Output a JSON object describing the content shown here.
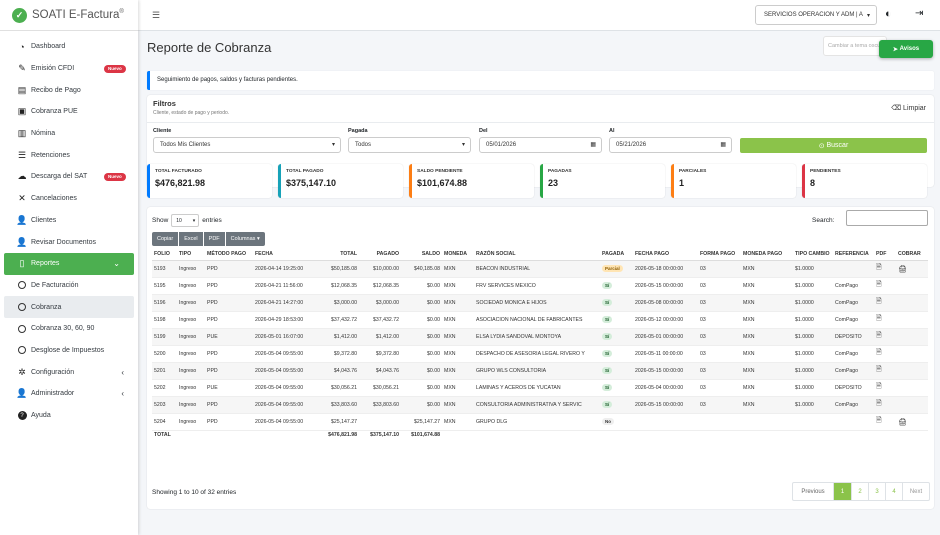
{
  "brand": {
    "name": "SOATI E-Factura",
    "mark": "®"
  },
  "sidebar": {
    "items": [
      {
        "label": "Dashboard",
        "icon": "dashboard-icon"
      },
      {
        "label": "Emisión CFDI",
        "icon": "file-signature-icon",
        "badge": "Nuevo"
      },
      {
        "label": "Recibo de Pago",
        "icon": "receipt-icon"
      },
      {
        "label": "Cobranza PUE",
        "icon": "cash-icon"
      },
      {
        "label": "Nómina",
        "icon": "id-card-icon"
      },
      {
        "label": "Retenciones",
        "icon": "list-icon"
      },
      {
        "label": "Descarga del SAT",
        "icon": "cloud-download-icon",
        "badge": "Nuevo"
      },
      {
        "label": "Cancelaciones",
        "icon": "close-icon"
      },
      {
        "label": "Clientes",
        "icon": "users-icon"
      },
      {
        "label": "Revisar Documentos",
        "icon": "user-search-icon"
      },
      {
        "label": "Reportes",
        "icon": "file-icon"
      },
      {
        "label": "De Facturación",
        "icon": "circle-icon"
      },
      {
        "label": "Cobranza",
        "icon": "circle-icon"
      },
      {
        "label": "Cobranza 30, 60, 90",
        "icon": "circle-icon"
      },
      {
        "label": "Desglose de Impuestos",
        "icon": "circle-icon"
      },
      {
        "label": "Configuración",
        "icon": "gears-icon"
      },
      {
        "label": "Administrador",
        "icon": "user-tie-icon"
      },
      {
        "label": "Ayuda",
        "icon": "help-icon"
      }
    ]
  },
  "topbar": {
    "company": "SERVICIOS OPERACION Y ADM | A"
  },
  "page": {
    "title": "Reporte de Cobranza",
    "search_placeholder": "Cambiar a tema oscuro",
    "avisos": "Avisos",
    "info": "Seguimiento de pagos, saldos y facturas pendientes."
  },
  "filters": {
    "title": "Filtros",
    "subtitle": "Cliente, estado de pago y periodo.",
    "clear": "Limpiar",
    "cliente_label": "Cliente",
    "cliente_value": "Todos Mis Clientes",
    "pagada_label": "Pagada",
    "pagada_value": "Todos",
    "del_label": "Del",
    "del_value": "05/01/2026",
    "al_label": "Al",
    "al_value": "05/21/2026",
    "buscar": "Buscar"
  },
  "kpis": [
    {
      "label": "TOTAL FACTURADO",
      "value": "$476,821.98",
      "color": "#007bff"
    },
    {
      "label": "TOTAL PAGADO",
      "value": "$375,147.10",
      "color": "#17a2b8"
    },
    {
      "label": "SALDO PENDIENTE",
      "value": "$101,674.88",
      "color": "#fd7e14"
    },
    {
      "label": "PAGADAS",
      "value": "23",
      "color": "#28a745"
    },
    {
      "label": "PARCIALES",
      "value": "1",
      "color": "#fd7e14"
    },
    {
      "label": "PENDIENTES",
      "value": "8",
      "color": "#dc3545"
    }
  ],
  "table": {
    "show": "Show",
    "entries": "entries",
    "length": "10",
    "search": "Search:",
    "buttons": [
      "Copiar",
      "Excel",
      "PDF",
      "Columnas"
    ],
    "headers": [
      "FOLIO",
      "TIPO",
      "MÉTODO PAGO",
      "FECHA",
      "TOTAL",
      "PAGADO",
      "SALDO",
      "MONEDA",
      "RAZÓN SOCIAL",
      "PAGADA",
      "FECHA PAGO",
      "FORMA PAGO",
      "MONEDA PAGO",
      "TIPO CAMBIO",
      "REFERENCIA",
      "PDF",
      "COBRAR"
    ],
    "rows": [
      [
        "5193",
        "Ingreso",
        "PPD",
        "2026-04-14 19:25:00",
        "$50,185.08",
        "$10,000.00",
        "$40,185.08",
        "MXN",
        "BEACON INDUSTRIAL",
        "Parcial",
        "2026-05-18 00:00:00",
        "03",
        "MXN",
        "$1.0000",
        "",
        "pdf",
        "cobrar"
      ],
      [
        "5195",
        "Ingreso",
        "PPD",
        "2026-04-21 11:56:00",
        "$12,068.35",
        "$12,068.35",
        "$0.00",
        "MXN",
        "FRV SERVICES MEXICO",
        "Sí",
        "2026-05-15 00:00:00",
        "03",
        "MXN",
        "$1.0000",
        "ComPago",
        "pdf",
        ""
      ],
      [
        "5196",
        "Ingreso",
        "PPD",
        "2026-04-21 14:27:00",
        "$3,000.00",
        "$3,000.00",
        "$0.00",
        "MXN",
        "SOCIEDAD MONICA E HIJOS",
        "Sí",
        "2026-05-08 00:00:00",
        "03",
        "MXN",
        "$1.0000",
        "ComPago",
        "pdf",
        ""
      ],
      [
        "5198",
        "Ingreso",
        "PPD",
        "2026-04-29 18:53:00",
        "$37,432.72",
        "$37,432.72",
        "$0.00",
        "MXN",
        "ASOCIACION NACIONAL DE FABRICANTES",
        "Sí",
        "2026-05-12 00:00:00",
        "03",
        "MXN",
        "$1.0000",
        "ComPago",
        "pdf",
        ""
      ],
      [
        "5199",
        "Ingreso",
        "PUE",
        "2026-05-01 16:07:00",
        "$1,412.00",
        "$1,412.00",
        "$0.00",
        "MXN",
        "ELSA LYDIA SANDOVAL MONTOYA",
        "Sí",
        "2026-05-01 00:00:00",
        "03",
        "MXN",
        "$1.0000",
        "DEPOSITO",
        "pdf",
        ""
      ],
      [
        "5200",
        "Ingreso",
        "PPD",
        "2026-05-04 09:55:00",
        "$9,372.80",
        "$9,372.80",
        "$0.00",
        "MXN",
        "DESPACHO DE ASESORIA LEGAL RIVERO Y",
        "Sí",
        "2026-05-11 00:00:00",
        "03",
        "MXN",
        "$1.0000",
        "ComPago",
        "pdf",
        ""
      ],
      [
        "5201",
        "Ingreso",
        "PPD",
        "2026-05-04 09:55:00",
        "$4,043.76",
        "$4,043.76",
        "$0.00",
        "MXN",
        "GRUPO WLS CONSULTORIA",
        "Sí",
        "2026-05-15 00:00:00",
        "03",
        "MXN",
        "$1.0000",
        "ComPago",
        "pdf",
        ""
      ],
      [
        "5202",
        "Ingreso",
        "PUE",
        "2026-05-04 09:55:00",
        "$30,056.21",
        "$30,056.21",
        "$0.00",
        "MXN",
        "LAMINAS Y ACEROS DE YUCATAN",
        "Sí",
        "2026-05-04 00:00:00",
        "03",
        "MXN",
        "$1.0000",
        "DEPOSITO",
        "pdf",
        ""
      ],
      [
        "5203",
        "Ingreso",
        "PPD",
        "2026-05-04 09:55:00",
        "$33,803.60",
        "$33,803.60",
        "$0.00",
        "MXN",
        "CONSULTORIA ADMINISTRATIVA Y SERVIC",
        "Sí",
        "2026-05-15 00:00:00",
        "03",
        "MXN",
        "$1.0000",
        "ComPago",
        "pdf",
        ""
      ],
      [
        "5204",
        "Ingreso",
        "PPD",
        "2026-05-04 09:55:00",
        "$25,147.27",
        "",
        "$25,147.27",
        "MXN",
        "GRUPO DLG",
        "No",
        "",
        "",
        "",
        "",
        "",
        "pdf",
        "cobrar"
      ]
    ],
    "total_label": "TOTAL",
    "total_total": "$476,821.98",
    "total_pagado": "$375,147.10",
    "total_saldo": "$101,674.88",
    "showing": "Showing 1 to 10 of 32 entries",
    "pager": [
      "Previous",
      "1",
      "2",
      "3",
      "4",
      "Next"
    ]
  }
}
